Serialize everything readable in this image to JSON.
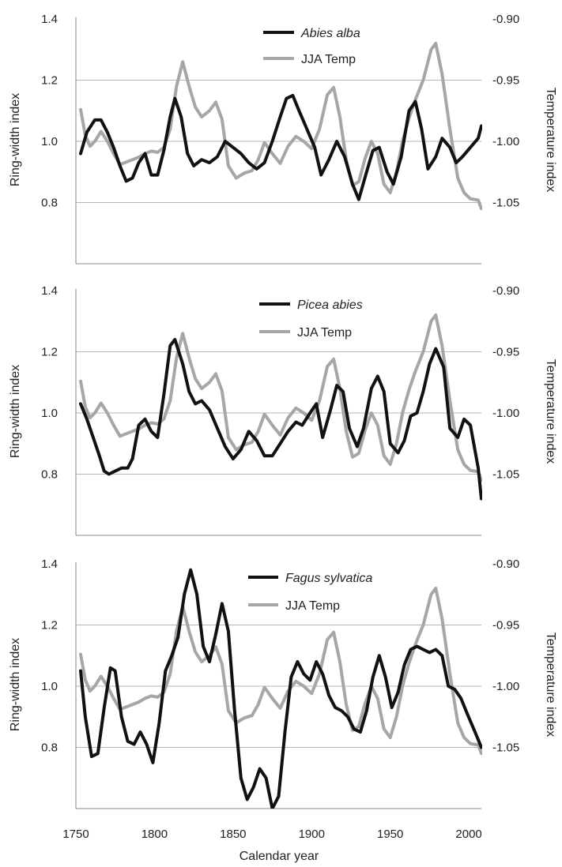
{
  "figure": {
    "xlabel": "Calendar year",
    "x_ticks": [
      1750,
      1800,
      1850,
      1900,
      1950,
      2000
    ],
    "xlim": [
      1750,
      2008
    ]
  },
  "colors": {
    "ring": "#111111",
    "temp": "#a6a6a6",
    "grid": "#b5b5b5",
    "axis": "#888888"
  },
  "chart_data": [
    {
      "type": "line",
      "ylabel": "Ring-width index",
      "ylabel_right": "Temperature index",
      "ylim": [
        0.6,
        1.4
      ],
      "y_ticks": [
        0.8,
        1.0,
        1.2,
        1.4
      ],
      "y_tick_labels": [
        "0.8",
        "1.0",
        "1.2",
        "1.4"
      ],
      "ylim_right": [
        -1.1,
        -0.9
      ],
      "y_right_ticks": [
        -1.05,
        -1.0,
        -0.95,
        -0.9
      ],
      "y_right_tick_labels": [
        "-1.05",
        "-1.00",
        "-0.95",
        "-0.90"
      ],
      "grid": "horizontal",
      "legend": "top-center",
      "series": [
        {
          "name": "Abies alba",
          "axis": "left",
          "x": [
            1753,
            1757,
            1762,
            1766,
            1770,
            1774,
            1778,
            1782,
            1786,
            1790,
            1794,
            1798,
            1802,
            1806,
            1810,
            1813,
            1817,
            1821,
            1825,
            1830,
            1835,
            1840,
            1845,
            1850,
            1855,
            1860,
            1865,
            1870,
            1875,
            1880,
            1884,
            1888,
            1892,
            1897,
            1902,
            1906,
            1911,
            1916,
            1921,
            1926,
            1930,
            1935,
            1939,
            1943,
            1948,
            1952,
            1957,
            1962,
            1966,
            1970,
            1974,
            1979,
            1983,
            1988,
            1992,
            1996,
            2001,
            2006,
            2008
          ],
          "y": [
            0.96,
            1.03,
            1.07,
            1.07,
            1.03,
            0.98,
            0.92,
            0.87,
            0.88,
            0.93,
            0.96,
            0.89,
            0.89,
            0.97,
            1.08,
            1.14,
            1.08,
            0.96,
            0.92,
            0.94,
            0.93,
            0.95,
            1.0,
            0.98,
            0.96,
            0.93,
            0.91,
            0.93,
            1.0,
            1.08,
            1.14,
            1.15,
            1.1,
            1.04,
            0.98,
            0.89,
            0.94,
            1.0,
            0.95,
            0.86,
            0.81,
            0.9,
            0.97,
            0.98,
            0.9,
            0.86,
            0.95,
            1.1,
            1.13,
            1.04,
            0.91,
            0.95,
            1.01,
            0.98,
            0.93,
            0.95,
            0.98,
            1.01,
            1.05
          ]
        },
        {
          "name": "JJA Temp",
          "axis": "right",
          "x": [
            1753,
            1756,
            1759,
            1762,
            1766,
            1770,
            1774,
            1778,
            1782,
            1786,
            1790,
            1794,
            1798,
            1802,
            1806,
            1810,
            1814,
            1818,
            1822,
            1826,
            1830,
            1835,
            1839,
            1843,
            1847,
            1852,
            1857,
            1862,
            1866,
            1870,
            1875,
            1880,
            1885,
            1890,
            1895,
            1900,
            1905,
            1910,
            1914,
            1918,
            1922,
            1926,
            1930,
            1934,
            1938,
            1942,
            1946,
            1950,
            1954,
            1958,
            1962,
            1966,
            1971,
            1976,
            1979,
            1983,
            1988,
            1993,
            1997,
            2001,
            2006,
            2008
          ],
          "y": [
            -0.974,
            -0.995,
            -1.004,
            -1.0,
            -0.992,
            -1.0,
            -1.01,
            -1.019,
            -1.017,
            -1.015,
            -1.013,
            -1.01,
            -1.008,
            -1.009,
            -1.005,
            -0.99,
            -0.955,
            -0.935,
            -0.955,
            -0.972,
            -0.98,
            -0.975,
            -0.968,
            -0.982,
            -1.02,
            -1.03,
            -1.026,
            -1.024,
            -1.015,
            -1.001,
            -1.01,
            -1.018,
            -1.004,
            -0.996,
            -1.0,
            -1.006,
            -0.99,
            -0.962,
            -0.956,
            -0.98,
            -1.015,
            -1.036,
            -1.033,
            -1.014,
            -1.0,
            -1.01,
            -1.035,
            -1.042,
            -1.025,
            -0.999,
            -0.981,
            -0.966,
            -0.95,
            -0.925,
            -0.92,
            -0.945,
            -0.99,
            -1.03,
            -1.042,
            -1.047,
            -1.048,
            -1.055
          ]
        }
      ]
    },
    {
      "type": "line",
      "ylabel": "Ring-width index",
      "ylabel_right": "Temperature index",
      "ylim": [
        0.6,
        1.4
      ],
      "y_ticks": [
        0.8,
        1.0,
        1.2,
        1.4
      ],
      "y_tick_labels": [
        "0.8",
        "1.0",
        "1.2",
        "1.4"
      ],
      "ylim_right": [
        -1.1,
        -0.9
      ],
      "y_right_ticks": [
        -1.05,
        -1.0,
        -0.95,
        -0.9
      ],
      "y_right_tick_labels": [
        "-1.05",
        "-1.00",
        "-0.95",
        "-0.90"
      ],
      "grid": "horizontal",
      "legend": "top-center",
      "series": [
        {
          "name": "Picea abies",
          "axis": "left",
          "x": [
            1753,
            1757,
            1761,
            1765,
            1768,
            1771,
            1775,
            1779,
            1783,
            1786,
            1790,
            1794,
            1798,
            1802,
            1806,
            1810,
            1813,
            1818,
            1822,
            1826,
            1830,
            1835,
            1840,
            1845,
            1850,
            1855,
            1860,
            1865,
            1870,
            1875,
            1880,
            1885,
            1890,
            1894,
            1899,
            1903,
            1907,
            1912,
            1916,
            1920,
            1924,
            1929,
            1933,
            1938,
            1942,
            1946,
            1950,
            1955,
            1959,
            1963,
            1967,
            1971,
            1975,
            1979,
            1984,
            1988,
            1993,
            1997,
            2001,
            2006,
            2008
          ],
          "y": [
            1.03,
            0.98,
            0.92,
            0.86,
            0.81,
            0.8,
            0.81,
            0.82,
            0.82,
            0.85,
            0.96,
            0.98,
            0.94,
            0.92,
            1.06,
            1.22,
            1.24,
            1.16,
            1.07,
            1.03,
            1.04,
            1.01,
            0.95,
            0.89,
            0.85,
            0.88,
            0.94,
            0.91,
            0.86,
            0.86,
            0.9,
            0.94,
            0.97,
            0.96,
            1.0,
            1.03,
            0.92,
            1.01,
            1.09,
            1.07,
            0.95,
            0.89,
            0.95,
            1.08,
            1.12,
            1.07,
            0.9,
            0.87,
            0.91,
            0.99,
            1.0,
            1.07,
            1.16,
            1.21,
            1.15,
            0.95,
            0.92,
            0.98,
            0.96,
            0.82,
            0.72
          ]
        },
        {
          "name": "JJA Temp",
          "axis": "right",
          "x": [
            1753,
            1756,
            1759,
            1762,
            1766,
            1770,
            1774,
            1778,
            1782,
            1786,
            1790,
            1794,
            1798,
            1802,
            1806,
            1810,
            1814,
            1818,
            1822,
            1826,
            1830,
            1835,
            1839,
            1843,
            1847,
            1852,
            1857,
            1862,
            1866,
            1870,
            1875,
            1880,
            1885,
            1890,
            1895,
            1900,
            1905,
            1910,
            1914,
            1918,
            1922,
            1926,
            1930,
            1934,
            1938,
            1942,
            1946,
            1950,
            1954,
            1958,
            1962,
            1966,
            1971,
            1976,
            1979,
            1983,
            1988,
            1993,
            1997,
            2001,
            2006,
            2008
          ],
          "y": [
            -0.974,
            -0.995,
            -1.004,
            -1.0,
            -0.992,
            -1.0,
            -1.01,
            -1.019,
            -1.017,
            -1.015,
            -1.013,
            -1.01,
            -1.008,
            -1.009,
            -1.005,
            -0.99,
            -0.955,
            -0.935,
            -0.955,
            -0.972,
            -0.98,
            -0.975,
            -0.968,
            -0.982,
            -1.02,
            -1.03,
            -1.026,
            -1.024,
            -1.015,
            -1.001,
            -1.01,
            -1.018,
            -1.004,
            -0.996,
            -1.0,
            -1.006,
            -0.99,
            -0.962,
            -0.956,
            -0.98,
            -1.015,
            -1.036,
            -1.033,
            -1.014,
            -1.0,
            -1.01,
            -1.035,
            -1.042,
            -1.025,
            -0.999,
            -0.981,
            -0.966,
            -0.95,
            -0.925,
            -0.92,
            -0.945,
            -0.99,
            -1.03,
            -1.042,
            -1.047,
            -1.048,
            -1.055
          ]
        }
      ]
    },
    {
      "type": "line",
      "ylabel": "Ring-width index",
      "ylabel_right": "Temperature index",
      "ylim": [
        0.6,
        1.4
      ],
      "y_ticks": [
        0.8,
        1.0,
        1.2,
        1.4
      ],
      "y_tick_labels": [
        "0.8",
        "1.0",
        "1.2",
        "1.4"
      ],
      "ylim_right": [
        -1.1,
        -0.9
      ],
      "y_right_ticks": [
        -1.05,
        -1.0,
        -0.95,
        -0.9
      ],
      "y_right_tick_labels": [
        "-1.05",
        "-1.00",
        "-0.95",
        "-0.90"
      ],
      "grid": "horizontal",
      "legend": "top-center",
      "series": [
        {
          "name": "Fagus sylvatica",
          "axis": "left",
          "x": [
            1753,
            1756,
            1760,
            1764,
            1768,
            1772,
            1775,
            1779,
            1783,
            1787,
            1791,
            1795,
            1799,
            1803,
            1807,
            1811,
            1815,
            1819,
            1823,
            1827,
            1831,
            1835,
            1839,
            1843,
            1847,
            1851,
            1855,
            1859,
            1863,
            1867,
            1871,
            1875,
            1879,
            1883,
            1887,
            1891,
            1895,
            1899,
            1903,
            1907,
            1911,
            1915,
            1919,
            1923,
            1927,
            1931,
            1935,
            1939,
            1943,
            1947,
            1951,
            1955,
            1959,
            1963,
            1967,
            1971,
            1975,
            1979,
            1983,
            1987,
            1991,
            1995,
            1999,
            2004,
            2008
          ],
          "y": [
            1.05,
            0.9,
            0.77,
            0.78,
            0.93,
            1.06,
            1.05,
            0.9,
            0.82,
            0.81,
            0.85,
            0.81,
            0.75,
            0.88,
            1.05,
            1.1,
            1.16,
            1.3,
            1.38,
            1.3,
            1.13,
            1.08,
            1.17,
            1.27,
            1.18,
            0.92,
            0.7,
            0.63,
            0.67,
            0.73,
            0.7,
            0.6,
            0.64,
            0.85,
            1.03,
            1.08,
            1.04,
            1.02,
            1.08,
            1.04,
            0.97,
            0.93,
            0.92,
            0.9,
            0.86,
            0.85,
            0.92,
            1.03,
            1.1,
            1.03,
            0.93,
            0.98,
            1.07,
            1.12,
            1.13,
            1.12,
            1.11,
            1.12,
            1.1,
            1.0,
            0.99,
            0.96,
            0.91,
            0.85,
            0.8
          ]
        },
        {
          "name": "JJA Temp",
          "axis": "right",
          "x": [
            1753,
            1756,
            1759,
            1762,
            1766,
            1770,
            1774,
            1778,
            1782,
            1786,
            1790,
            1794,
            1798,
            1802,
            1806,
            1810,
            1814,
            1818,
            1822,
            1826,
            1830,
            1835,
            1839,
            1843,
            1847,
            1852,
            1857,
            1862,
            1866,
            1870,
            1875,
            1880,
            1885,
            1890,
            1895,
            1900,
            1905,
            1910,
            1914,
            1918,
            1922,
            1926,
            1930,
            1934,
            1938,
            1942,
            1946,
            1950,
            1954,
            1958,
            1962,
            1966,
            1971,
            1976,
            1979,
            1983,
            1988,
            1993,
            1997,
            2001,
            2006,
            2008
          ],
          "y": [
            -0.974,
            -0.995,
            -1.004,
            -1.0,
            -0.992,
            -1.0,
            -1.01,
            -1.019,
            -1.017,
            -1.015,
            -1.013,
            -1.01,
            -1.008,
            -1.009,
            -1.005,
            -0.99,
            -0.955,
            -0.935,
            -0.955,
            -0.972,
            -0.98,
            -0.975,
            -0.968,
            -0.982,
            -1.02,
            -1.03,
            -1.026,
            -1.024,
            -1.015,
            -1.001,
            -1.01,
            -1.018,
            -1.004,
            -0.996,
            -1.0,
            -1.006,
            -0.99,
            -0.962,
            -0.956,
            -0.98,
            -1.015,
            -1.036,
            -1.033,
            -1.014,
            -1.0,
            -1.01,
            -1.035,
            -1.042,
            -1.025,
            -0.999,
            -0.981,
            -0.966,
            -0.95,
            -0.925,
            -0.92,
            -0.945,
            -0.99,
            -1.03,
            -1.042,
            -1.047,
            -1.048,
            -1.055
          ]
        }
      ]
    }
  ]
}
